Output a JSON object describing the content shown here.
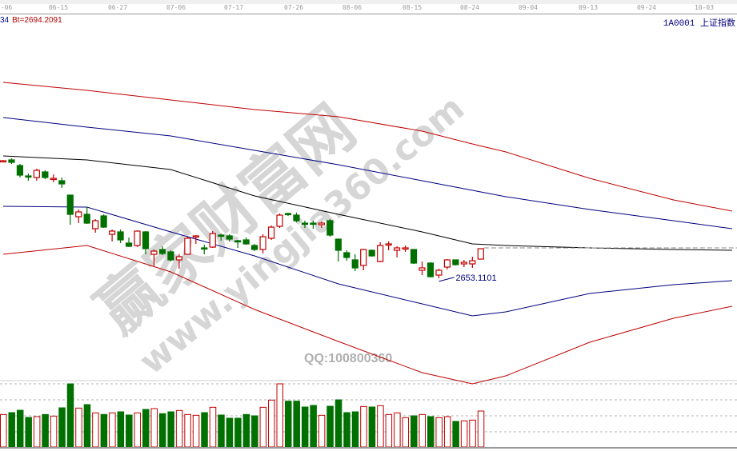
{
  "header": {
    "left_partial": "34",
    "bt_value": "Bt=2694.2091",
    "symbol": "1A0001",
    "name": "上证指数"
  },
  "watermark": {
    "brand": "赢家财富网",
    "site": "www.yingjia360.com",
    "qq": "QQ:100800360"
  },
  "colors": {
    "up": "#c00000",
    "down": "#007000",
    "upper_band": "#c00000",
    "inner_band": "#000080",
    "mid_line": "#000000",
    "label": "#000080"
  },
  "chart_data": {
    "type": "candlestick",
    "title": "",
    "x_tick_labels": [
      "-06",
      "06-15",
      "06-27",
      "07-06",
      "07-17",
      "07-26",
      "08-06",
      "08-15",
      "08-24",
      "09-04",
      "09-13",
      "09-24",
      "10-03"
    ],
    "annotation": {
      "label": "2653.1101",
      "value": 2653.1101,
      "candle_index": 52
    },
    "candles_ohlc": [
      [
        2799,
        2801,
        2798,
        2800
      ],
      [
        2801,
        2803,
        2796,
        2798
      ],
      [
        2794,
        2796,
        2779,
        2782
      ],
      [
        2781,
        2784,
        2775,
        2780
      ],
      [
        2779,
        2790,
        2775,
        2788
      ],
      [
        2786,
        2788,
        2777,
        2779
      ],
      [
        2777,
        2783,
        2773,
        2778
      ],
      [
        2775,
        2779,
        2766,
        2771
      ],
      [
        2757,
        2757,
        2720,
        2733
      ],
      [
        2730,
        2739,
        2722,
        2736
      ],
      [
        2733,
        2742,
        2721,
        2722
      ],
      [
        2715,
        2727,
        2710,
        2725
      ],
      [
        2731,
        2733,
        2716,
        2717
      ],
      [
        2708,
        2714,
        2699,
        2712
      ],
      [
        2711,
        2714,
        2697,
        2701
      ],
      [
        2697,
        2704,
        2692,
        2693
      ],
      [
        2694,
        2713,
        2692,
        2712
      ],
      [
        2711,
        2712,
        2683,
        2690
      ],
      [
        2683,
        2689,
        2667,
        2687
      ],
      [
        2689,
        2693,
        2682,
        2684
      ],
      [
        2686,
        2688,
        2674,
        2676
      ],
      [
        2676,
        2683,
        2665,
        2680
      ],
      [
        2683,
        2705,
        2683,
        2703
      ],
      [
        2705,
        2707,
        2696,
        2706
      ],
      [
        2691,
        2695,
        2683,
        2690
      ],
      [
        2692,
        2712,
        2691,
        2709
      ],
      [
        2707,
        2709,
        2700,
        2706
      ],
      [
        2706,
        2708,
        2699,
        2702
      ],
      [
        2700,
        2701,
        2691,
        2699
      ],
      [
        2701,
        2704,
        2695,
        2696
      ],
      [
        2694,
        2696,
        2687,
        2689
      ],
      [
        2689,
        2708,
        2684,
        2705
      ],
      [
        2703,
        2719,
        2701,
        2717
      ],
      [
        2718,
        2734,
        2716,
        2732
      ],
      [
        2734,
        2735,
        2731,
        2733
      ],
      [
        2732,
        2735,
        2723,
        2725
      ],
      [
        2722,
        2725,
        2716,
        2721
      ],
      [
        2722,
        2725,
        2715,
        2721
      ],
      [
        2720,
        2724,
        2716,
        2722
      ],
      [
        2725,
        2727,
        2705,
        2707
      ],
      [
        2702,
        2702,
        2674,
        2688
      ],
      [
        2685,
        2688,
        2675,
        2679
      ],
      [
        2676,
        2683,
        2662,
        2666
      ],
      [
        2669,
        2690,
        2663,
        2689
      ],
      [
        2688,
        2689,
        2680,
        2681
      ],
      [
        2674,
        2698,
        2673,
        2694
      ],
      [
        2695,
        2699,
        2688,
        2696
      ],
      [
        2688,
        2693,
        2679,
        2691
      ],
      [
        2690,
        2694,
        2686,
        2691
      ],
      [
        2689,
        2689,
        2671,
        2672
      ],
      [
        2663,
        2674,
        2657,
        2666
      ],
      [
        2672,
        2673,
        2654,
        2655
      ],
      [
        2657,
        2665,
        2653.11,
        2663
      ],
      [
        2667,
        2677,
        2664,
        2676
      ],
      [
        2676,
        2676,
        2669,
        2670
      ],
      [
        2671,
        2676,
        2667,
        2673
      ],
      [
        2671,
        2680,
        2666,
        2675
      ],
      [
        2677,
        2690,
        2677,
        2690
      ]
    ],
    "volume": [
      125,
      132,
      141,
      114,
      117,
      125,
      119,
      150,
      240,
      149,
      162,
      131,
      125,
      131,
      135,
      123,
      131,
      144,
      147,
      128,
      135,
      140,
      125,
      122,
      132,
      152,
      123,
      111,
      111,
      125,
      120,
      152,
      179,
      240,
      175,
      175,
      153,
      159,
      122,
      156,
      180,
      132,
      135,
      155,
      153,
      158,
      125,
      131,
      113,
      120,
      125,
      117,
      113,
      117,
      99,
      101,
      104,
      138
    ],
    "volume_up": [
      1,
      0,
      0,
      0,
      1,
      0,
      1,
      0,
      0,
      1,
      0,
      1,
      0,
      1,
      0,
      0,
      1,
      0,
      1,
      0,
      0,
      1,
      1,
      1,
      0,
      1,
      0,
      0,
      0,
      0,
      0,
      1,
      1,
      1,
      0,
      0,
      0,
      0,
      1,
      0,
      0,
      0,
      0,
      1,
      0,
      1,
      1,
      1,
      1,
      0,
      1,
      0,
      1,
      1,
      0,
      1,
      1,
      1
    ],
    "bands": {
      "x_index": [
        0,
        10,
        20,
        30,
        40,
        50,
        56,
        60,
        70,
        80,
        87
      ],
      "upper_outer": [
        2898,
        2888,
        2876,
        2864,
        2855,
        2837,
        2821,
        2811,
        2778,
        2751,
        2737
      ],
      "upper_inner": [
        2854,
        2842,
        2831,
        2813,
        2795,
        2775,
        2763,
        2755,
        2739,
        2725,
        2715
      ],
      "middle": [
        2806,
        2801,
        2789,
        2756,
        2733,
        2711,
        2696,
        2694,
        2691,
        2689,
        2688
      ],
      "lower_inner": [
        2743,
        2742,
        2711,
        2681,
        2646,
        2621,
        2606,
        2611,
        2634,
        2645,
        2650
      ],
      "lower_outer": [
        2683,
        2694,
        2661,
        2614,
        2574,
        2535,
        2521,
        2531,
        2573,
        2603,
        2618
      ]
    },
    "grid": "dashed volume gridlines",
    "legend": "none"
  }
}
